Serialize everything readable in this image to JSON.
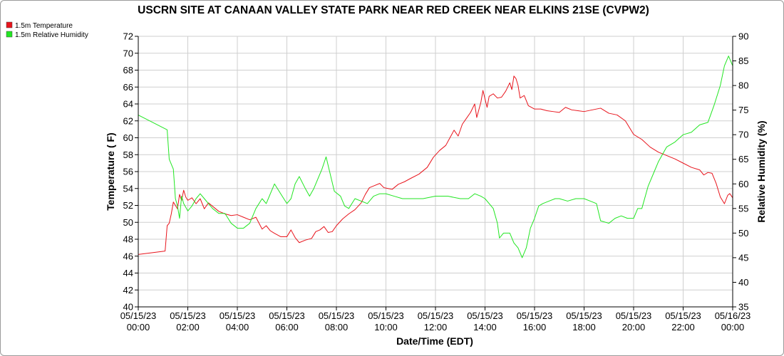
{
  "chart_data": {
    "type": "line",
    "title": "USCRN SITE AT CANAAN VALLEY STATE PARK NEAR RED CREEK NEAR ELKINS 21SE (CVPW2)",
    "xlabel": "Date/Time (EDT)",
    "ylabel": "Temperature ( F)",
    "y2label": "Relative Humidity (%)",
    "xlim": [
      "05/15/23 00:00",
      "05/16/23 00:00"
    ],
    "ylim": [
      40,
      72
    ],
    "y2lim": [
      35,
      90
    ],
    "grid": true,
    "legend": "top-left",
    "x_ticks": [
      {
        "date": "05/15/23",
        "time": "00:00"
      },
      {
        "date": "05/15/23",
        "time": "02:00"
      },
      {
        "date": "05/15/23",
        "time": "04:00"
      },
      {
        "date": "05/15/23",
        "time": "06:00"
      },
      {
        "date": "05/15/23",
        "time": "08:00"
      },
      {
        "date": "05/15/23",
        "time": "10:00"
      },
      {
        "date": "05/15/23",
        "time": "12:00"
      },
      {
        "date": "05/15/23",
        "time": "14:00"
      },
      {
        "date": "05/15/23",
        "time": "16:00"
      },
      {
        "date": "05/15/23",
        "time": "18:00"
      },
      {
        "date": "05/15/23",
        "time": "20:00"
      },
      {
        "date": "05/15/23",
        "time": "22:00"
      },
      {
        "date": "05/16/23",
        "time": "00:00"
      }
    ],
    "y_ticks": [
      "40",
      "42",
      "44",
      "46",
      "48",
      "50",
      "52",
      "54",
      "56",
      "58",
      "60",
      "62",
      "64",
      "66",
      "68",
      "70",
      "72"
    ],
    "y2_ticks": [
      "35",
      "40",
      "45",
      "50",
      "55",
      "60",
      "65",
      "70",
      "75",
      "80",
      "85",
      "90"
    ],
    "series": [
      {
        "name": "1.5m Temperature",
        "axis": "left",
        "color": "#e8141c",
        "points": [
          [
            "05/15/23 00:00",
            46.2
          ],
          [
            "05/15/23 01:05",
            46.6
          ],
          [
            "05/15/23 01:10",
            49.6
          ],
          [
            "05/15/23 01:15",
            49.9
          ],
          [
            "05/15/23 01:20",
            51.0
          ],
          [
            "05/15/23 01:25",
            52.4
          ],
          [
            "05/15/23 01:30",
            52.0
          ],
          [
            "05/15/23 01:35",
            51.6
          ],
          [
            "05/15/23 01:40",
            53.3
          ],
          [
            "05/15/23 01:45",
            52.6
          ],
          [
            "05/15/23 01:50",
            53.8
          ],
          [
            "05/15/23 01:55",
            53.0
          ],
          [
            "05/15/23 02:00",
            52.6
          ],
          [
            "05/15/23 02:10",
            52.9
          ],
          [
            "05/15/23 02:20",
            52.2
          ],
          [
            "05/15/23 02:30",
            52.8
          ],
          [
            "05/15/23 02:40",
            51.6
          ],
          [
            "05/15/23 02:50",
            52.3
          ],
          [
            "05/15/23 03:00",
            51.9
          ],
          [
            "05/15/23 03:15",
            51.3
          ],
          [
            "05/15/23 03:30",
            51.0
          ],
          [
            "05/15/23 03:45",
            50.8
          ],
          [
            "05/15/23 04:00",
            50.9
          ],
          [
            "05/15/23 04:15",
            50.6
          ],
          [
            "05/15/23 04:30",
            50.3
          ],
          [
            "05/15/23 04:45",
            50.6
          ],
          [
            "05/15/23 05:00",
            49.2
          ],
          [
            "05/15/23 05:10",
            49.6
          ],
          [
            "05/15/23 05:20",
            49.0
          ],
          [
            "05/15/23 05:30",
            48.7
          ],
          [
            "05/15/23 05:45",
            48.3
          ],
          [
            "05/15/23 06:00",
            48.3
          ],
          [
            "05/15/23 06:10",
            49.1
          ],
          [
            "05/15/23 06:20",
            48.2
          ],
          [
            "05/15/23 06:30",
            47.6
          ],
          [
            "05/15/23 06:45",
            47.9
          ],
          [
            "05/15/23 07:00",
            48.1
          ],
          [
            "05/15/23 07:10",
            48.9
          ],
          [
            "05/15/23 07:20",
            49.1
          ],
          [
            "05/15/23 07:30",
            49.5
          ],
          [
            "05/15/23 07:40",
            48.8
          ],
          [
            "05/15/23 07:50",
            48.9
          ],
          [
            "05/15/23 08:00",
            49.6
          ],
          [
            "05/15/23 08:15",
            50.4
          ],
          [
            "05/15/23 08:30",
            51.0
          ],
          [
            "05/15/23 08:45",
            51.5
          ],
          [
            "05/15/23 09:00",
            52.3
          ],
          [
            "05/15/23 09:10",
            53.3
          ],
          [
            "05/15/23 09:20",
            54.1
          ],
          [
            "05/15/23 09:30",
            54.3
          ],
          [
            "05/15/23 09:45",
            54.6
          ],
          [
            "05/15/23 09:55",
            54.1
          ],
          [
            "05/15/23 10:05",
            54.0
          ],
          [
            "05/15/23 10:15",
            53.9
          ],
          [
            "05/15/23 10:30",
            54.5
          ],
          [
            "05/15/23 10:45",
            54.8
          ],
          [
            "05/15/23 11:00",
            55.2
          ],
          [
            "05/15/23 11:20",
            55.7
          ],
          [
            "05/15/23 11:40",
            56.5
          ],
          [
            "05/15/23 11:55",
            57.7
          ],
          [
            "05/15/23 12:10",
            58.5
          ],
          [
            "05/15/23 12:25",
            59.1
          ],
          [
            "05/15/23 12:35",
            60.0
          ],
          [
            "05/15/23 12:45",
            60.9
          ],
          [
            "05/15/23 12:55",
            60.2
          ],
          [
            "05/15/23 13:05",
            61.6
          ],
          [
            "05/15/23 13:15",
            62.3
          ],
          [
            "05/15/23 13:25",
            63.0
          ],
          [
            "05/15/23 13:35",
            64.0
          ],
          [
            "05/15/23 13:40",
            62.4
          ],
          [
            "05/15/23 13:50",
            64.2
          ],
          [
            "05/15/23 13:55",
            65.6
          ],
          [
            "05/15/23 14:05",
            63.6
          ],
          [
            "05/15/23 14:10",
            64.9
          ],
          [
            "05/15/23 14:20",
            65.2
          ],
          [
            "05/15/23 14:30",
            64.7
          ],
          [
            "05/15/23 14:40",
            64.8
          ],
          [
            "05/15/23 14:50",
            65.5
          ],
          [
            "05/15/23 15:00",
            66.5
          ],
          [
            "05/15/23 15:05",
            65.7
          ],
          [
            "05/15/23 15:10",
            67.3
          ],
          [
            "05/15/23 15:15",
            67.0
          ],
          [
            "05/15/23 15:20",
            66.2
          ],
          [
            "05/15/23 15:25",
            64.7
          ],
          [
            "05/15/23 15:35",
            65.0
          ],
          [
            "05/15/23 15:45",
            63.8
          ],
          [
            "05/15/23 16:00",
            63.4
          ],
          [
            "05/15/23 16:15",
            63.4
          ],
          [
            "05/15/23 16:30",
            63.2
          ],
          [
            "05/15/23 16:45",
            63.1
          ],
          [
            "05/15/23 17:00",
            63.0
          ],
          [
            "05/15/23 17:15",
            63.6
          ],
          [
            "05/15/23 17:30",
            63.3
          ],
          [
            "05/15/23 17:45",
            63.2
          ],
          [
            "05/15/23 18:00",
            63.1
          ],
          [
            "05/15/23 18:20",
            63.3
          ],
          [
            "05/15/23 18:40",
            63.5
          ],
          [
            "05/15/23 19:00",
            62.9
          ],
          [
            "05/15/23 19:20",
            62.7
          ],
          [
            "05/15/23 19:40",
            62.0
          ],
          [
            "05/15/23 19:50",
            61.2
          ],
          [
            "05/15/23 20:00",
            60.4
          ],
          [
            "05/15/23 20:20",
            59.8
          ],
          [
            "05/15/23 20:40",
            58.9
          ],
          [
            "05/15/23 21:00",
            58.3
          ],
          [
            "05/15/23 21:20",
            57.9
          ],
          [
            "05/15/23 21:40",
            57.5
          ],
          [
            "05/15/23 22:00",
            57.0
          ],
          [
            "05/15/23 22:20",
            56.5
          ],
          [
            "05/15/23 22:40",
            56.2
          ],
          [
            "05/15/23 22:50",
            55.6
          ],
          [
            "05/15/23 23:00",
            55.9
          ],
          [
            "05/15/23 23:10",
            55.8
          ],
          [
            "05/15/23 23:20",
            54.6
          ],
          [
            "05/15/23 23:30",
            53.0
          ],
          [
            "05/15/23 23:40",
            52.2
          ],
          [
            "05/15/23 23:48",
            53.2
          ],
          [
            "05/15/23 23:53",
            53.4
          ],
          [
            "05/16/23 00:00",
            52.9
          ]
        ]
      },
      {
        "name": "1.5m Relative Humidity",
        "axis": "right",
        "color": "#22e622",
        "points": [
          [
            "05/15/23 00:00",
            74.0
          ],
          [
            "05/15/23 01:10",
            71.0
          ],
          [
            "05/15/23 01:15",
            65.0
          ],
          [
            "05/15/23 01:25",
            63.0
          ],
          [
            "05/15/23 01:30",
            57.0
          ],
          [
            "05/15/23 01:35",
            55.5
          ],
          [
            "05/15/23 01:40",
            53.0
          ],
          [
            "05/15/23 01:45",
            57.5
          ],
          [
            "05/15/23 01:50",
            56.0
          ],
          [
            "05/15/23 02:00",
            54.5
          ],
          [
            "05/15/23 02:10",
            55.5
          ],
          [
            "05/15/23 02:20",
            57.0
          ],
          [
            "05/15/23 02:30",
            58.0
          ],
          [
            "05/15/23 02:40",
            57.0
          ],
          [
            "05/15/23 02:50",
            56.0
          ],
          [
            "05/15/23 03:00",
            55.0
          ],
          [
            "05/15/23 03:15",
            54.0
          ],
          [
            "05/15/23 03:30",
            54.0
          ],
          [
            "05/15/23 03:45",
            52.0
          ],
          [
            "05/15/23 04:00",
            51.0
          ],
          [
            "05/15/23 04:15",
            51.0
          ],
          [
            "05/15/23 04:30",
            52.0
          ],
          [
            "05/15/23 04:45",
            55.0
          ],
          [
            "05/15/23 05:00",
            57.0
          ],
          [
            "05/15/23 05:10",
            56.0
          ],
          [
            "05/15/23 05:20",
            58.0
          ],
          [
            "05/15/23 05:30",
            60.0
          ],
          [
            "05/15/23 05:45",
            58.0
          ],
          [
            "05/15/23 06:00",
            56.0
          ],
          [
            "05/15/23 06:10",
            57.0
          ],
          [
            "05/15/23 06:20",
            60.0
          ],
          [
            "05/15/23 06:30",
            61.5
          ],
          [
            "05/15/23 06:45",
            59.0
          ],
          [
            "05/15/23 06:55",
            57.5
          ],
          [
            "05/15/23 07:05",
            59.0
          ],
          [
            "05/15/23 07:15",
            61.0
          ],
          [
            "05/15/23 07:25",
            63.0
          ],
          [
            "05/15/23 07:35",
            65.5
          ],
          [
            "05/15/23 07:45",
            62.0
          ],
          [
            "05/15/23 07:55",
            58.5
          ],
          [
            "05/15/23 08:10",
            57.5
          ],
          [
            "05/15/23 08:20",
            55.5
          ],
          [
            "05/15/23 08:30",
            55.0
          ],
          [
            "05/15/23 08:45",
            57.0
          ],
          [
            "05/15/23 09:00",
            56.5
          ],
          [
            "05/15/23 09:15",
            56.0
          ],
          [
            "05/15/23 09:30",
            57.5
          ],
          [
            "05/15/23 09:45",
            58.0
          ],
          [
            "05/15/23 10:00",
            58.0
          ],
          [
            "05/15/23 10:20",
            57.5
          ],
          [
            "05/15/23 10:40",
            57.0
          ],
          [
            "05/15/23 11:00",
            57.0
          ],
          [
            "05/15/23 11:30",
            57.0
          ],
          [
            "05/15/23 12:00",
            57.5
          ],
          [
            "05/15/23 12:30",
            57.5
          ],
          [
            "05/15/23 13:00",
            57.0
          ],
          [
            "05/15/23 13:20",
            57.0
          ],
          [
            "05/15/23 13:35",
            58.0
          ],
          [
            "05/15/23 13:50",
            57.5
          ],
          [
            "05/15/23 14:00",
            57.0
          ],
          [
            "05/15/23 14:20",
            55.0
          ],
          [
            "05/15/23 14:30",
            52.0
          ],
          [
            "05/15/23 14:35",
            49.0
          ],
          [
            "05/15/23 14:45",
            50.0
          ],
          [
            "05/15/23 15:00",
            50.0
          ],
          [
            "05/15/23 15:10",
            48.0
          ],
          [
            "05/15/23 15:20",
            47.0
          ],
          [
            "05/15/23 15:30",
            45.0
          ],
          [
            "05/15/23 15:40",
            47.0
          ],
          [
            "05/15/23 15:50",
            51.0
          ],
          [
            "05/15/23 16:00",
            53.0
          ],
          [
            "05/15/23 16:10",
            55.5
          ],
          [
            "05/15/23 16:20",
            56.0
          ],
          [
            "05/15/23 16:35",
            56.5
          ],
          [
            "05/15/23 16:50",
            57.0
          ],
          [
            "05/15/23 17:00",
            57.0
          ],
          [
            "05/15/23 17:20",
            56.5
          ],
          [
            "05/15/23 17:40",
            57.0
          ],
          [
            "05/15/23 18:00",
            57.0
          ],
          [
            "05/15/23 18:15",
            56.5
          ],
          [
            "05/15/23 18:30",
            56.0
          ],
          [
            "05/15/23 18:40",
            52.5
          ],
          [
            "05/15/23 19:00",
            52.0
          ],
          [
            "05/15/23 19:15",
            53.0
          ],
          [
            "05/15/23 19:30",
            53.5
          ],
          [
            "05/15/23 19:45",
            53.0
          ],
          [
            "05/15/23 20:00",
            53.0
          ],
          [
            "05/15/23 20:10",
            55.0
          ],
          [
            "05/15/23 20:20",
            55.0
          ],
          [
            "05/15/23 20:35",
            59.5
          ],
          [
            "05/15/23 20:50",
            62.5
          ],
          [
            "05/15/23 21:00",
            64.5
          ],
          [
            "05/15/23 21:20",
            67.5
          ],
          [
            "05/15/23 21:40",
            68.5
          ],
          [
            "05/15/23 22:00",
            70.0
          ],
          [
            "05/15/23 22:20",
            70.5
          ],
          [
            "05/15/23 22:40",
            72.0
          ],
          [
            "05/15/23 23:00",
            72.5
          ],
          [
            "05/15/23 23:15",
            76.0
          ],
          [
            "05/15/23 23:30",
            80.0
          ],
          [
            "05/15/23 23:40",
            84.0
          ],
          [
            "05/15/23 23:50",
            86.0
          ],
          [
            "05/16/23 00:00",
            84.0
          ]
        ]
      }
    ]
  }
}
